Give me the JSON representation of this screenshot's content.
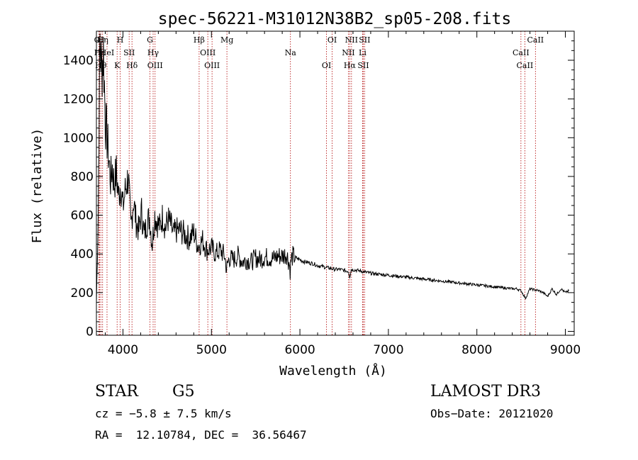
{
  "chart_data": {
    "type": "line",
    "title": "spec-56221-M31012N38B2_sp05-208.fits",
    "xlabel": "Wavelength (Å)",
    "ylabel": "Flux (relative)",
    "xlim": [
      3700,
      9100
    ],
    "ylim": [
      -20,
      1550
    ],
    "xticks": [
      4000,
      5000,
      6000,
      7000,
      8000,
      9000
    ],
    "yticks": [
      0,
      200,
      400,
      600,
      800,
      1000,
      1200,
      1400
    ],
    "xtick_labels": [
      "4000",
      "5000",
      "6000",
      "7000",
      "8000",
      "9000"
    ],
    "ytick_labels": [
      "0",
      "200",
      "400",
      "600",
      "800",
      "1000",
      "1200",
      "1400"
    ],
    "series": [
      {
        "name": "flux",
        "x": [
          3700,
          3720,
          3740,
          3760,
          3780,
          3800,
          3820,
          3840,
          3860,
          3880,
          3900,
          3925,
          3950,
          3975,
          4000,
          4030,
          4060,
          4090,
          4120,
          4150,
          4180,
          4210,
          4240,
          4270,
          4300,
          4330,
          4360,
          4390,
          4420,
          4450,
          4480,
          4510,
          4540,
          4570,
          4600,
          4650,
          4700,
          4750,
          4800,
          4850,
          4900,
          4950,
          5000,
          5050,
          5100,
          5150,
          5170,
          5200,
          5250,
          5300,
          5350,
          5400,
          5450,
          5500,
          5550,
          5600,
          5650,
          5700,
          5750,
          5800,
          5850,
          5880,
          5890,
          5900,
          5920,
          5950,
          6000,
          6050,
          6100,
          6150,
          6200,
          6250,
          6300,
          6350,
          6400,
          6450,
          6500,
          6550,
          6563,
          6580,
          6650,
          6700,
          6800,
          6900,
          7000,
          7100,
          7200,
          7300,
          7400,
          7500,
          7600,
          7700,
          7800,
          7900,
          8000,
          8100,
          8200,
          8300,
          8400,
          8450,
          8500,
          8550,
          8600,
          8650,
          8700,
          8750,
          8800,
          8850,
          8900,
          8950,
          9000,
          9040
        ],
        "y": [
          150,
          600,
          1500,
          1350,
          1450,
          1100,
          1000,
          900,
          780,
          850,
          760,
          820,
          700,
          760,
          640,
          740,
          800,
          540,
          680,
          560,
          520,
          620,
          500,
          560,
          590,
          450,
          600,
          560,
          540,
          600,
          530,
          580,
          550,
          500,
          520,
          520,
          500,
          480,
          510,
          440,
          470,
          420,
          430,
          400,
          420,
          390,
          320,
          380,
          370,
          390,
          360,
          370,
          360,
          380,
          370,
          385,
          380,
          375,
          390,
          390,
          400,
          350,
          310,
          370,
          390,
          380,
          370,
          360,
          355,
          350,
          340,
          335,
          330,
          325,
          320,
          320,
          315,
          310,
          280,
          320,
          315,
          310,
          300,
          295,
          290,
          285,
          280,
          275,
          270,
          265,
          260,
          255,
          250,
          245,
          240,
          235,
          230,
          225,
          220,
          220,
          210,
          170,
          220,
          215,
          210,
          200,
          180,
          220,
          190,
          220,
          200,
          210
        ]
      }
    ],
    "lines": [
      {
        "label": "OI",
        "wl": 3727
      },
      {
        "label": "Hε",
        "wl": 3735
      },
      {
        "label": "Hθ",
        "wl": 3750
      },
      {
        "label": "Hη",
        "wl": 3770
      },
      {
        "label": "HeI",
        "wl": 3820
      },
      {
        "label": "K",
        "wl": 3934
      },
      {
        "label": "H",
        "wl": 3969
      },
      {
        "label": "SII",
        "wl": 4070
      },
      {
        "label": "Hδ",
        "wl": 4102
      },
      {
        "label": "G",
        "wl": 4305
      },
      {
        "label": "Hγ",
        "wl": 4341
      },
      {
        "label": "OIII",
        "wl": 4363
      },
      {
        "label": "Hβ",
        "wl": 4861
      },
      {
        "label": "OIII",
        "wl": 4959
      },
      {
        "label": "OIII",
        "wl": 5007
      },
      {
        "label": "Mg",
        "wl": 5175
      },
      {
        "label": "Na",
        "wl": 5893
      },
      {
        "label": "OI",
        "wl": 6300
      },
      {
        "label": "OI",
        "wl": 6364
      },
      {
        "label": "NII",
        "wl": 6548
      },
      {
        "label": "Hα",
        "wl": 6563
      },
      {
        "label": "NII",
        "wl": 6583
      },
      {
        "label": "Li",
        "wl": 6708
      },
      {
        "label": "SII",
        "wl": 6716
      },
      {
        "label": "SII",
        "wl": 6731
      },
      {
        "label": "CaII",
        "wl": 8498
      },
      {
        "label": "CaII",
        "wl": 8542
      },
      {
        "label": "CaII",
        "wl": 8662
      }
    ]
  },
  "info": {
    "class_label": "STAR",
    "subclass_label": "G5",
    "survey": "LAMOST DR3",
    "cz": "cz = −5.8 ± 7.5 km/s",
    "obs_date": "Obs−Date: 20121020",
    "coords": "RA =  12.10784, DEC =  36.56467"
  },
  "colors": {
    "axis": "#000000",
    "spectrum": "#000000",
    "line_marker": "#b00000"
  }
}
